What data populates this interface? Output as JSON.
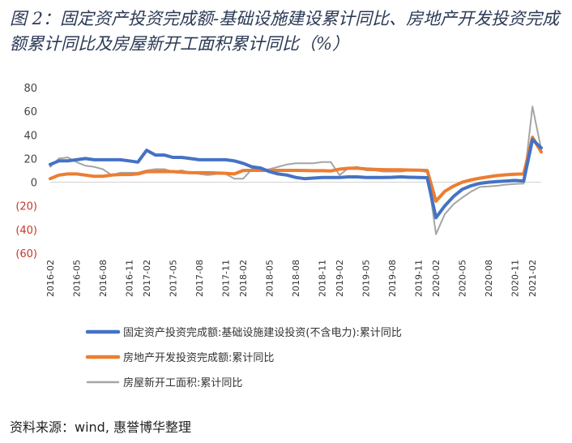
{
  "figure": {
    "title": "图 2：固定资产投资完成额-基础设施建设累计同比、房地产开发投资完成额累计同比及房屋新开工面积累计同比（%）",
    "source": "资料来源：wind, 惠誉博华整理"
  },
  "chart_data": {
    "type": "line",
    "title": "",
    "xlabel": "",
    "ylabel": "",
    "ylim": [
      -60,
      80
    ],
    "yticks": [
      80,
      60,
      40,
      20,
      0,
      -20,
      -40,
      -60
    ],
    "ytick_labels": [
      "80",
      "60",
      "40",
      "20",
      "0",
      "(20)",
      "(40)",
      "(60)"
    ],
    "grid": false,
    "legend": "bottom",
    "x": [
      "2016-02",
      "2016-03",
      "2016-04",
      "2016-05",
      "2016-06",
      "2016-07",
      "2016-08",
      "2016-09",
      "2016-10",
      "2016-11",
      "2016-12",
      "2017-02",
      "2017-03",
      "2017-04",
      "2017-05",
      "2017-06",
      "2017-07",
      "2017-08",
      "2017-09",
      "2017-10",
      "2017-11",
      "2017-12",
      "2018-02",
      "2018-03",
      "2018-04",
      "2018-05",
      "2018-06",
      "2018-07",
      "2018-08",
      "2018-09",
      "2018-10",
      "2018-11",
      "2018-12",
      "2019-02",
      "2019-03",
      "2019-04",
      "2019-05",
      "2019-06",
      "2019-07",
      "2019-08",
      "2019-09",
      "2019-10",
      "2019-11",
      "2019-12",
      "2020-02",
      "2020-03",
      "2020-04",
      "2020-05",
      "2020-06",
      "2020-07",
      "2020-08",
      "2020-09",
      "2020-10",
      "2020-11",
      "2020-12",
      "2021-02",
      "2021-03"
    ],
    "xtick_labels": [
      "2016-02",
      "2016-05",
      "2016-08",
      "2016-11",
      "2017-02",
      "2017-05",
      "2017-08",
      "2017-11",
      "2018-02",
      "2018-05",
      "2018-08",
      "2018-11",
      "2019-02",
      "2019-05",
      "2019-08",
      "2019-11",
      "2020-02",
      "2020-05",
      "2020-08",
      "2020-11",
      "2021-02"
    ],
    "series": [
      {
        "name": "固定资产投资完成额:基础设施建设投资(不含电力):累计同比",
        "color": "#4472c4",
        "values": [
          15,
          18,
          18,
          19,
          20,
          19,
          19,
          19,
          19,
          18,
          17,
          27,
          23,
          23,
          21,
          21,
          20,
          19,
          19,
          19,
          19,
          18,
          16,
          13,
          12,
          9,
          7,
          6,
          4,
          3,
          3.5,
          4,
          4,
          4,
          4.5,
          4.5,
          4,
          4,
          4,
          4.2,
          4.5,
          4.2,
          4,
          3.8,
          -30,
          -20,
          -12,
          -6,
          -3,
          -1,
          0,
          0.5,
          1,
          1.5,
          1,
          36,
          29
        ]
      },
      {
        "name": "房地产开发投资完成额:累计同比",
        "color": "#ed7d31",
        "values": [
          3,
          6,
          7,
          7,
          6,
          5,
          5,
          6,
          6.5,
          6.5,
          7,
          8.9,
          9,
          9,
          9,
          8.5,
          8,
          8,
          8,
          7.8,
          7.5,
          7,
          9.9,
          10,
          10,
          10,
          10,
          10,
          10,
          9.9,
          9.7,
          9.7,
          9.5,
          11,
          11.8,
          11.9,
          11.2,
          10.9,
          10.6,
          10.5,
          10.5,
          10.3,
          10.2,
          9.9,
          -16,
          -7.7,
          -3.3,
          0,
          2,
          3.4,
          4.6,
          5.6,
          6.3,
          6.8,
          7,
          38,
          25.6
        ]
      },
      {
        "name": "房屋新开工面积:累计同比",
        "color": "#a5a5a5",
        "values": [
          13,
          20,
          21,
          17,
          14,
          13,
          11,
          6,
          8,
          8,
          8,
          10,
          11,
          11,
          9,
          10,
          8,
          7,
          6,
          7,
          7,
          3,
          2.9,
          11,
          10,
          11,
          13,
          15,
          16,
          16,
          16,
          17,
          17,
          6,
          11.9,
          13,
          10,
          10,
          9,
          9,
          9,
          10,
          10,
          8.5,
          -44,
          -27,
          -18.6,
          -13,
          -8,
          -4,
          -3.6,
          -3,
          -2,
          -1.5,
          -1.2,
          64,
          28
        ]
      }
    ]
  }
}
